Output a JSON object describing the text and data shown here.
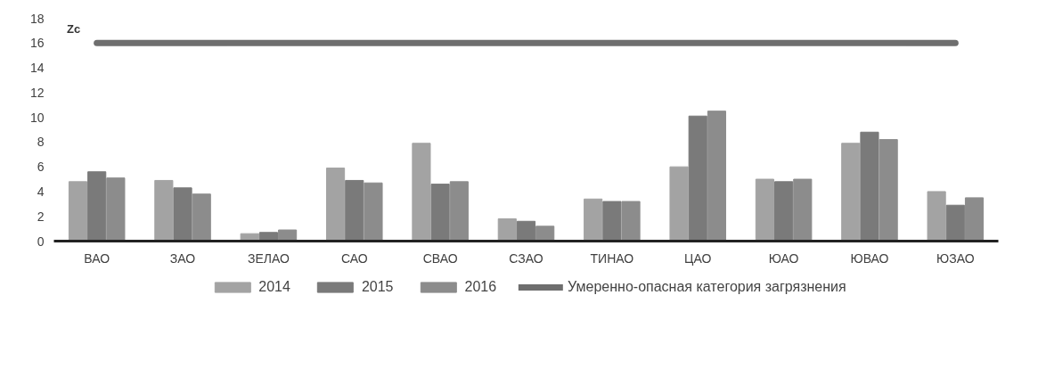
{
  "chart_data": {
    "type": "bar",
    "ylabel": "Zc",
    "categories": [
      "ВАО",
      "ЗАО",
      "ЗЕЛАО",
      "САО",
      "СВАО",
      "СЗАО",
      "ТИНАО",
      "ЦАО",
      "ЮАО",
      "ЮВАО",
      "ЮЗАО"
    ],
    "series": [
      {
        "name": "2014",
        "color": "#a3a3a3",
        "values": [
          4.8,
          4.9,
          0.6,
          5.9,
          7.9,
          1.8,
          3.4,
          6.0,
          5.0,
          7.9,
          4.0
        ]
      },
      {
        "name": "2015",
        "color": "#7a7a7a",
        "values": [
          5.6,
          4.3,
          0.7,
          4.9,
          4.6,
          1.6,
          3.2,
          10.1,
          4.8,
          8.8,
          2.9
        ]
      },
      {
        "name": "2016",
        "color": "#8c8c8c",
        "values": [
          5.1,
          3.8,
          0.9,
          4.7,
          4.8,
          1.2,
          3.2,
          10.5,
          5.0,
          8.2,
          3.5
        ]
      },
      {
        "name": "Умеренно-опасная категория загрязнения",
        "type": "line",
        "color": "#6e6e6e",
        "values": [
          16,
          16,
          16,
          16,
          16,
          16,
          16,
          16,
          16,
          16,
          16
        ]
      }
    ],
    "ylim": [
      0,
      18
    ],
    "yticks": [
      0,
      2,
      4,
      6,
      8,
      10,
      12,
      14,
      16,
      18
    ],
    "grid": false,
    "legend": "bottom"
  }
}
